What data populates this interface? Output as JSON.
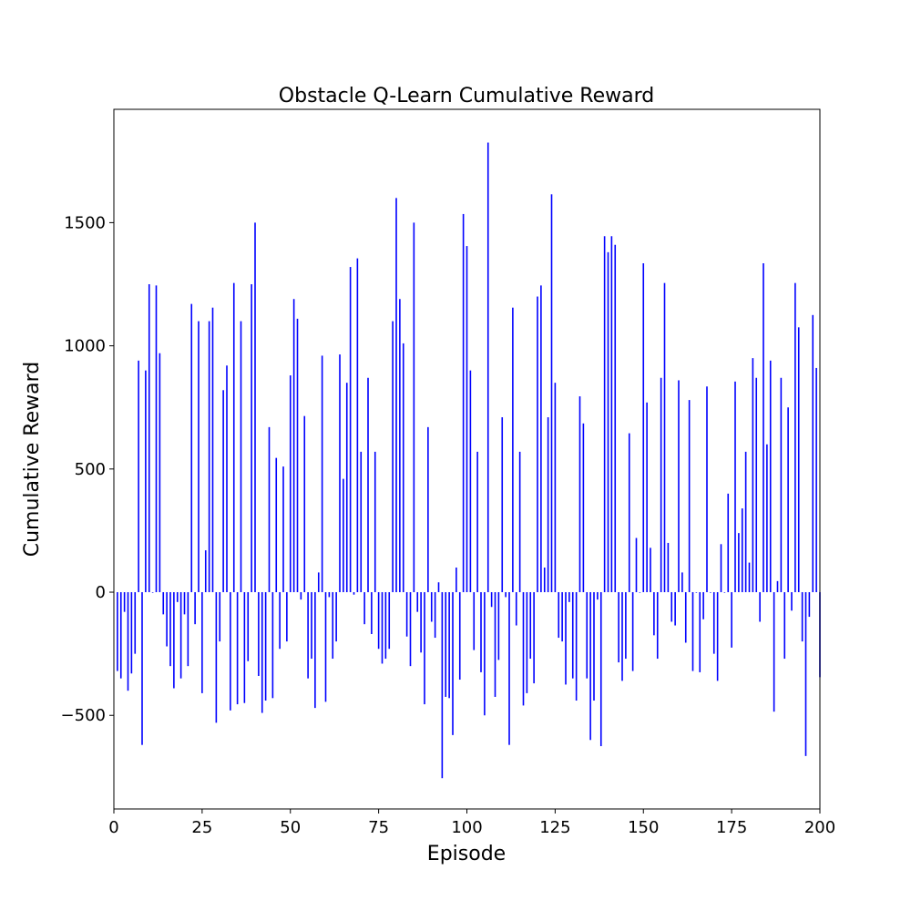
{
  "chart_data": {
    "type": "bar",
    "title": "Obstacle Q-Learn Cumulative Reward",
    "xlabel": "Episode",
    "ylabel": "Cumulative Reward",
    "xlim": [
      0,
      200
    ],
    "ylim": [
      -880,
      1960
    ],
    "xticks": [
      0,
      25,
      50,
      75,
      100,
      125,
      150,
      175,
      200
    ],
    "yticks": [
      -500,
      0,
      500,
      1000,
      1500
    ],
    "bar_color": "#0000ff",
    "grid": false,
    "x": [
      1,
      2,
      3,
      4,
      5,
      6,
      7,
      8,
      9,
      10,
      11,
      12,
      13,
      14,
      15,
      16,
      17,
      18,
      19,
      20,
      21,
      22,
      23,
      24,
      25,
      26,
      27,
      28,
      29,
      30,
      31,
      32,
      33,
      34,
      35,
      36,
      37,
      38,
      39,
      40,
      41,
      42,
      43,
      44,
      45,
      46,
      47,
      48,
      49,
      50,
      51,
      52,
      53,
      54,
      55,
      56,
      57,
      58,
      59,
      60,
      61,
      62,
      63,
      64,
      65,
      66,
      67,
      68,
      69,
      70,
      71,
      72,
      73,
      74,
      75,
      76,
      77,
      78,
      79,
      80,
      81,
      82,
      83,
      84,
      85,
      86,
      87,
      88,
      89,
      90,
      91,
      92,
      93,
      94,
      95,
      96,
      97,
      98,
      99,
      100,
      101,
      102,
      103,
      104,
      105,
      106,
      107,
      108,
      109,
      110,
      111,
      112,
      113,
      114,
      115,
      116,
      117,
      118,
      119,
      120,
      121,
      122,
      123,
      124,
      125,
      126,
      127,
      128,
      129,
      130,
      131,
      132,
      133,
      134,
      135,
      136,
      137,
      138,
      139,
      140,
      141,
      142,
      143,
      144,
      145,
      146,
      147,
      148,
      149,
      150,
      151,
      152,
      153,
      154,
      155,
      156,
      157,
      158,
      159,
      160,
      161,
      162,
      163,
      164,
      165,
      166,
      167,
      168,
      169,
      170,
      171,
      172,
      173,
      174,
      175,
      176,
      177,
      178,
      179,
      180,
      181,
      182,
      183,
      184,
      185,
      186,
      187,
      188,
      189,
      190,
      191,
      192,
      193,
      194,
      195,
      196,
      197,
      198,
      199,
      200
    ],
    "values": [
      -320,
      -350,
      -80,
      -400,
      -330,
      -250,
      940,
      -620,
      900,
      1250,
      0,
      1245,
      970,
      -90,
      -220,
      -300,
      -390,
      -40,
      -350,
      -90,
      -300,
      1170,
      -130,
      1100,
      -410,
      170,
      1100,
      1155,
      -530,
      -200,
      820,
      920,
      -480,
      1255,
      -455,
      1100,
      -450,
      -280,
      1250,
      1500,
      -340,
      -490,
      -440,
      670,
      -430,
      545,
      -230,
      510,
      -200,
      880,
      1190,
      1110,
      -30,
      715,
      -350,
      -270,
      -470,
      80,
      960,
      -445,
      -20,
      -270,
      -200,
      965,
      460,
      850,
      1320,
      -10,
      1355,
      570,
      -130,
      870,
      -170,
      570,
      -230,
      -290,
      -270,
      -230,
      1100,
      1600,
      1190,
      1010,
      -180,
      -300,
      1500,
      -80,
      -245,
      -455,
      670,
      -120,
      -185,
      40,
      -755,
      -425,
      -430,
      -580,
      100,
      -355,
      1535,
      1405,
      900,
      -235,
      570,
      -325,
      -500,
      1825,
      -60,
      -425,
      -275,
      710,
      -20,
      -620,
      1155,
      -135,
      570,
      -460,
      -410,
      -270,
      -370,
      1200,
      1245,
      100,
      710,
      1615,
      850,
      -185,
      -200,
      -375,
      -40,
      -350,
      -440,
      795,
      685,
      -350,
      -600,
      -440,
      -30,
      -625,
      1445,
      1380,
      1445,
      1410,
      -285,
      -360,
      -270,
      645,
      -320,
      220,
      0,
      1335,
      770,
      180,
      -175,
      -270,
      870,
      1255,
      200,
      -120,
      -135,
      860,
      80,
      -205,
      780,
      -320,
      0,
      -325,
      -110,
      835,
      0,
      -250,
      -360,
      195,
      0,
      400,
      -225,
      855,
      240,
      340,
      570,
      120,
      950,
      870,
      -120,
      1335,
      600,
      940,
      -485,
      45,
      870,
      -270,
      750,
      -75,
      1255,
      1075,
      -200,
      -665,
      -100,
      1125,
      910,
      -345
    ]
  }
}
